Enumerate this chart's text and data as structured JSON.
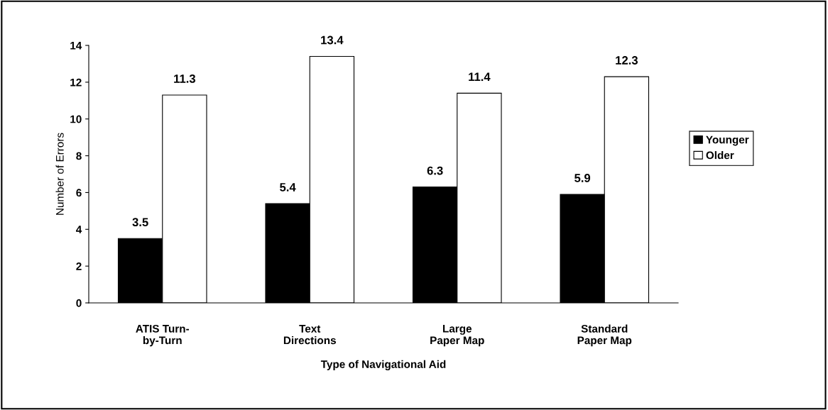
{
  "chart_data": {
    "type": "bar",
    "categories": [
      "ATIS Turn-\nby-Turn",
      "Text\nDirections",
      "Large\nPaper Map",
      "Standard\nPaper Map"
    ],
    "series": [
      {
        "name": "Younger",
        "color": "#000000",
        "values": [
          3.5,
          5.4,
          6.3,
          5.9
        ]
      },
      {
        "name": "Older",
        "color": "#ffffff",
        "values": [
          11.3,
          13.4,
          11.4,
          12.3
        ]
      }
    ],
    "xlabel": "Type of Navigational Aid",
    "ylabel": "Number of Errors",
    "ylim": [
      0,
      14
    ],
    "yticks": [
      0,
      2,
      4,
      6,
      8,
      10,
      12,
      14
    ],
    "data_labels": true,
    "legend": "right",
    "grid": false
  }
}
